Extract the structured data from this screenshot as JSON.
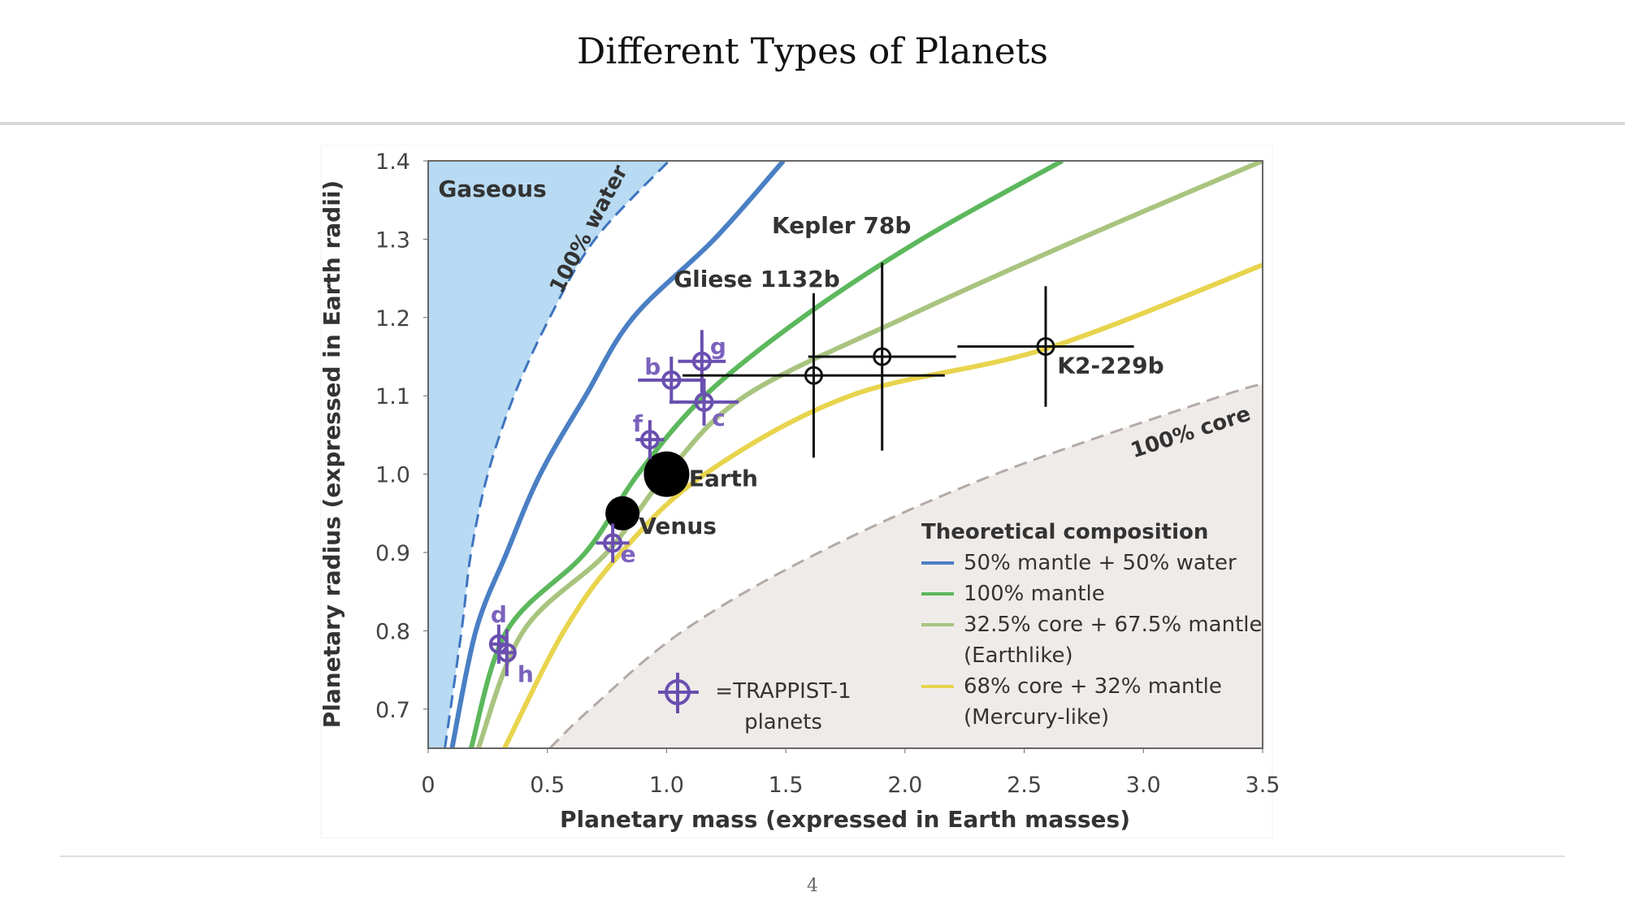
{
  "slide": {
    "title": "Different Types of Planets",
    "page_number": "4"
  },
  "chart_data": {
    "type": "scatter",
    "x_label": "Planetary mass (expressed in Earth masses)",
    "y_label": "Planetary radius (expressed in Earth radii)",
    "xlim": [
      0,
      3.5
    ],
    "ylim": [
      0.65,
      1.4
    ],
    "xticks": [
      0,
      0.5,
      {
        "value": 1,
        "label": "1.0"
      },
      1.5,
      {
        "value": 2,
        "label": "2.0"
      },
      2.5,
      {
        "value": 3,
        "label": "3.0"
      },
      3.5
    ],
    "yticks": [
      0.7,
      0.8,
      0.9,
      {
        "value": 1,
        "label": "1.0"
      },
      1.1,
      1.2,
      1.3,
      1.4
    ],
    "region_label": "Gaseous",
    "boundaries": [
      {
        "label": "100% water",
        "color": "#3f75c0",
        "fill": "#b8daf2",
        "side": "left",
        "x": [
          0.07,
          0.14,
          0.18,
          0.25,
          0.36,
          0.51,
          0.7,
          1.01
        ],
        "y": [
          0.65,
          0.8,
          0.9,
          1.0,
          1.1,
          1.2,
          1.3,
          1.4
        ]
      },
      {
        "label": "100% core",
        "color": "#b3aaa7",
        "fill": "#efebe9",
        "side": "right",
        "x": [
          0.51,
          0.68,
          1.07,
          1.64,
          2.38,
          3.33,
          3.5
        ],
        "y": [
          0.65,
          0.7,
          0.8,
          0.9,
          1.0,
          1.1,
          1.114
        ]
      }
    ],
    "legend_title": "Theoretical composition",
    "curves": [
      {
        "name": "50% mantle + 50% water",
        "color": "#4a7fc4",
        "x": [
          0.1,
          0.2,
          0.33,
          0.47,
          0.66,
          0.86,
          1.2,
          1.49
        ],
        "y": [
          0.65,
          0.8,
          0.9,
          1.0,
          1.1,
          1.2,
          1.3,
          1.4
        ]
      },
      {
        "name": "100% mantle",
        "color": "#5cb85c",
        "x": [
          0.18,
          0.33,
          0.66,
          0.88,
          1.16,
          1.57,
          2.07,
          2.66
        ],
        "y": [
          0.65,
          0.8,
          0.9,
          1.0,
          1.1,
          1.2,
          1.3,
          1.4
        ]
      },
      {
        "name": "32.5% core + 67.5% mantle (Earthlike)",
        "color": "#a9c47f",
        "x": [
          0.21,
          0.4,
          0.75,
          1.0,
          1.33,
          2.0,
          2.73,
          3.5
        ],
        "y": [
          0.65,
          0.8,
          0.9,
          1.0,
          1.1,
          1.2,
          1.3,
          1.4
        ]
      },
      {
        "name": "68% core + 32% mantle (Mercury-like)",
        "color": "#e8d44d",
        "x": [
          0.32,
          0.57,
          0.81,
          1.16,
          1.77,
          2.59,
          3.5
        ],
        "y": [
          0.65,
          0.8,
          0.9,
          1.0,
          1.1,
          1.16,
          1.267
        ]
      }
    ],
    "trappist_legend": "=TRAPPIST-1 planets",
    "trappist_color": "#6a4fb0",
    "planets": [
      {
        "name": "Earth",
        "marker": "large-dot",
        "x": 1.0,
        "y": 1.0
      },
      {
        "name": "Venus",
        "marker": "dot",
        "x": 0.815,
        "y": 0.95
      },
      {
        "name": "b",
        "marker": "trappist",
        "x": 1.02,
        "y": 1.12,
        "xerr": 0.14,
        "yerr": 0.03
      },
      {
        "name": "c",
        "marker": "trappist",
        "x": 1.157,
        "y": 1.092,
        "xerr": 0.145,
        "yerr": 0.03
      },
      {
        "name": "d",
        "marker": "trappist",
        "x": 0.296,
        "y": 0.783,
        "xerr": 0.04,
        "yerr": 0.025
      },
      {
        "name": "e",
        "marker": "trappist",
        "x": 0.774,
        "y": 0.912,
        "xerr": 0.07,
        "yerr": 0.025
      },
      {
        "name": "f",
        "marker": "trappist",
        "x": 0.93,
        "y": 1.044,
        "xerr": 0.06,
        "yerr": 0.025
      },
      {
        "name": "g",
        "marker": "trappist",
        "x": 1.148,
        "y": 1.144,
        "xerr": 0.1,
        "yerr": 0.04
      },
      {
        "name": "h",
        "marker": "trappist",
        "x": 0.33,
        "y": 0.772,
        "xerr": 0.03,
        "yerr": 0.03
      },
      {
        "name": "Gliese 1132b",
        "marker": "circle",
        "x": 1.617,
        "y": 1.126,
        "xerr": 0.55,
        "yerr": 0.105
      },
      {
        "name": "Kepler 78b",
        "marker": "circle",
        "x": 1.904,
        "y": 1.15,
        "xerr": 0.31,
        "yerr": 0.12
      },
      {
        "name": "K2-229b",
        "marker": "circle",
        "x": 2.59,
        "y": 1.163,
        "xerr": 0.37,
        "yerr": 0.077
      }
    ]
  }
}
